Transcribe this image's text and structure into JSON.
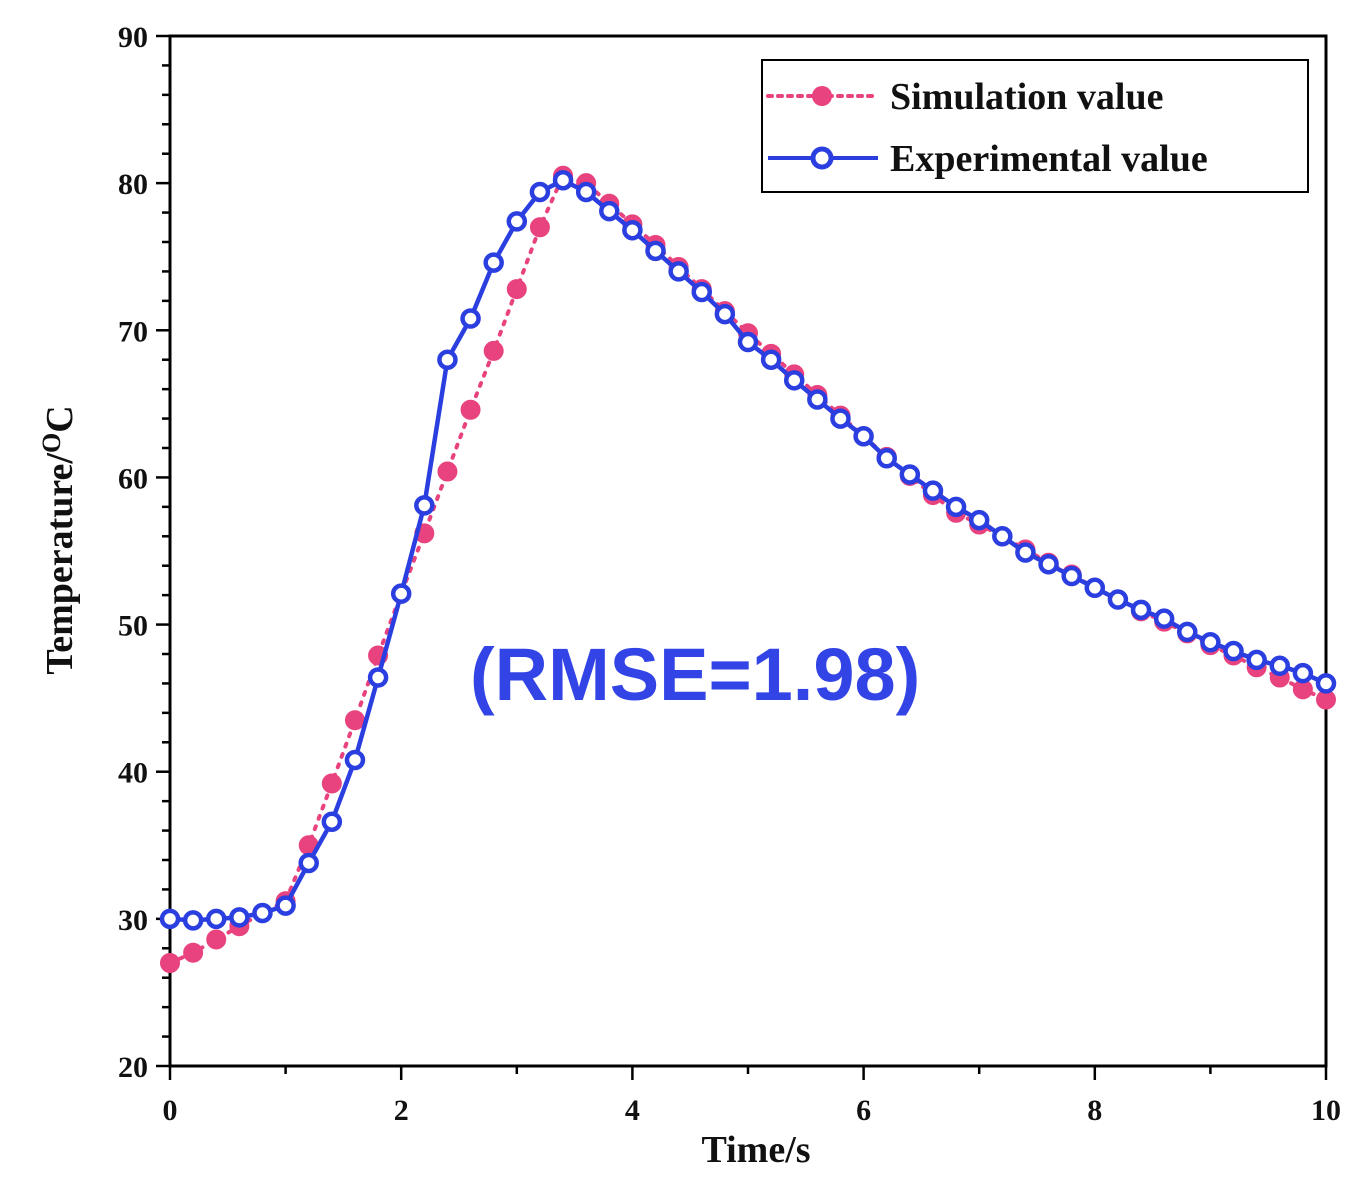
{
  "chart_data": {
    "type": "line",
    "title": "",
    "xlabel": "Time/s",
    "ylabel": "Temperature/",
    "ylabel_unit_superscript": "O",
    "ylabel_unit": "C",
    "xlim": [
      0,
      10
    ],
    "ylim": [
      20,
      90
    ],
    "xticks": [
      "0",
      "2",
      "4",
      "6",
      "8",
      "10"
    ],
    "yticks": [
      "20",
      "30",
      "40",
      "50",
      "60",
      "70",
      "80",
      "90"
    ],
    "grid": false,
    "legend_position": "top-right",
    "annotation": "(RMSE=1.98)",
    "colors": {
      "simulation": "#e8437e",
      "experimental": "#2b3fe0",
      "annotation": "#3344e6"
    },
    "series": [
      {
        "name": "Simulation value",
        "style": "dotted",
        "x": [
          0,
          0.2,
          0.4,
          0.6,
          0.8,
          1.0,
          1.2,
          1.4,
          1.6,
          1.8,
          2.0,
          2.2,
          2.4,
          2.6,
          2.8,
          3.0,
          3.2,
          3.4,
          3.6,
          3.8,
          4.0,
          4.2,
          4.4,
          4.6,
          4.8,
          5.0,
          5.2,
          5.4,
          5.6,
          5.8,
          6.0,
          6.2,
          6.4,
          6.6,
          6.8,
          7.0,
          7.2,
          7.4,
          7.6,
          7.8,
          8.0,
          8.2,
          8.4,
          8.6,
          8.8,
          9.0,
          9.2,
          9.4,
          9.6,
          9.8,
          10.0
        ],
        "y": [
          27.0,
          27.7,
          28.6,
          29.5,
          30.4,
          31.2,
          35.0,
          39.2,
          43.5,
          47.9,
          52.1,
          56.2,
          60.4,
          64.6,
          68.6,
          72.8,
          77.0,
          80.5,
          80.0,
          78.6,
          77.2,
          75.8,
          74.3,
          72.8,
          71.3,
          69.8,
          68.4,
          67.0,
          65.6,
          64.2,
          62.8,
          61.4,
          60.1,
          58.8,
          57.6,
          56.8,
          56.0,
          55.1,
          54.2,
          53.4,
          52.5,
          51.7,
          50.9,
          50.2,
          49.4,
          48.6,
          47.9,
          47.1,
          46.4,
          45.6,
          44.9
        ]
      },
      {
        "name": "Experimental value",
        "style": "solid",
        "x": [
          0,
          0.2,
          0.4,
          0.6,
          0.8,
          1.0,
          1.2,
          1.4,
          1.6,
          1.8,
          2.0,
          2.2,
          2.4,
          2.6,
          2.8,
          3.0,
          3.2,
          3.4,
          3.6,
          3.8,
          4.0,
          4.2,
          4.4,
          4.6,
          4.8,
          5.0,
          5.2,
          5.4,
          5.6,
          5.8,
          6.0,
          6.2,
          6.4,
          6.6,
          6.8,
          7.0,
          7.2,
          7.4,
          7.6,
          7.8,
          8.0,
          8.2,
          8.4,
          8.6,
          8.8,
          9.0,
          9.2,
          9.4,
          9.6,
          9.8,
          10.0
        ],
        "y": [
          30.0,
          29.9,
          30.0,
          30.1,
          30.4,
          30.9,
          33.8,
          36.6,
          40.8,
          46.4,
          52.1,
          58.1,
          68.0,
          70.8,
          74.6,
          77.4,
          79.4,
          80.2,
          79.4,
          78.1,
          76.8,
          75.4,
          74.0,
          72.6,
          71.1,
          69.2,
          68.0,
          66.6,
          65.3,
          64.0,
          62.8,
          61.3,
          60.2,
          59.1,
          58.0,
          57.1,
          56.0,
          54.9,
          54.1,
          53.3,
          52.5,
          51.7,
          51.0,
          50.4,
          49.5,
          48.8,
          48.2,
          47.6,
          47.2,
          46.7,
          46.0
        ]
      }
    ]
  }
}
